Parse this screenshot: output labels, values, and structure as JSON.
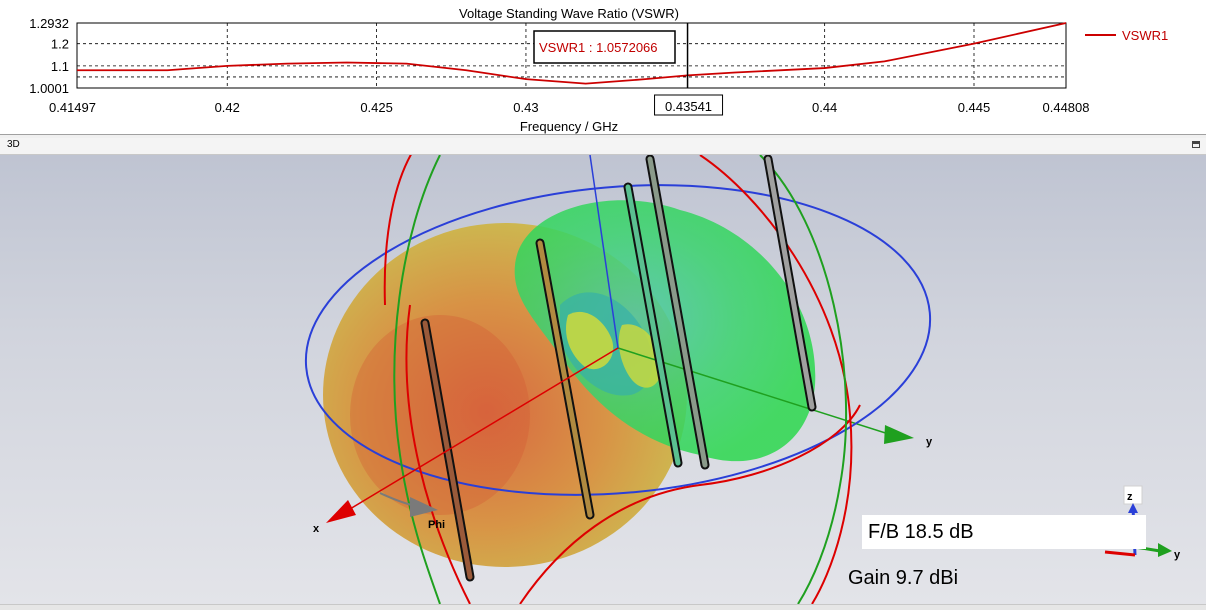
{
  "vswr_panel": {
    "chart_data": {
      "type": "line",
      "title": "Voltage Standing Wave Ratio (VSWR)",
      "xlabel": "Frequency / GHz",
      "ylabel": "",
      "xlim": [
        0.41497,
        0.44808
      ],
      "ylim": [
        1.0001,
        1.2932
      ],
      "x_ticks": [
        "0.41497",
        "0.42",
        "0.425",
        "0.43",
        "0.43541",
        "0.44",
        "0.445",
        "0.44808"
      ],
      "y_ticks": [
        "1.2932",
        "1.2",
        "1.1",
        "1.0001"
      ],
      "grid": true,
      "legend": "right",
      "series": [
        {
          "name": "VSWR1",
          "color": "#cc0000",
          "x": [
            0.41497,
            0.418,
            0.42,
            0.422,
            0.424,
            0.426,
            0.428,
            0.43,
            0.432,
            0.434,
            0.43541,
            0.437,
            0.44,
            0.442,
            0.445,
            0.44808
          ],
          "y": [
            1.08,
            1.08,
            1.1,
            1.11,
            1.115,
            1.11,
            1.08,
            1.04,
            1.02,
            1.04,
            1.0572066,
            1.07,
            1.09,
            1.12,
            1.2,
            1.2932
          ]
        }
      ],
      "marker": {
        "x": 0.43541,
        "x_label": "0.43541",
        "label": "VSWR1 : 1.0572066"
      }
    }
  },
  "view3d": {
    "title": "3D",
    "axis_labels": {
      "x": "x",
      "y": "y",
      "z": "z",
      "phi": "Phi"
    },
    "fb_label": "F/B  18.5 dB",
    "gain_label": "Gain  9.7 dBi",
    "colors": {
      "x_axis": "#dd0000",
      "y_axis": "#1fa01f",
      "z_axis": "#2a3fd8",
      "rear_lobe": "#d9643a",
      "front_lobe": "#2fd85a"
    }
  },
  "icons": {
    "maximize": "maximize-icon"
  }
}
